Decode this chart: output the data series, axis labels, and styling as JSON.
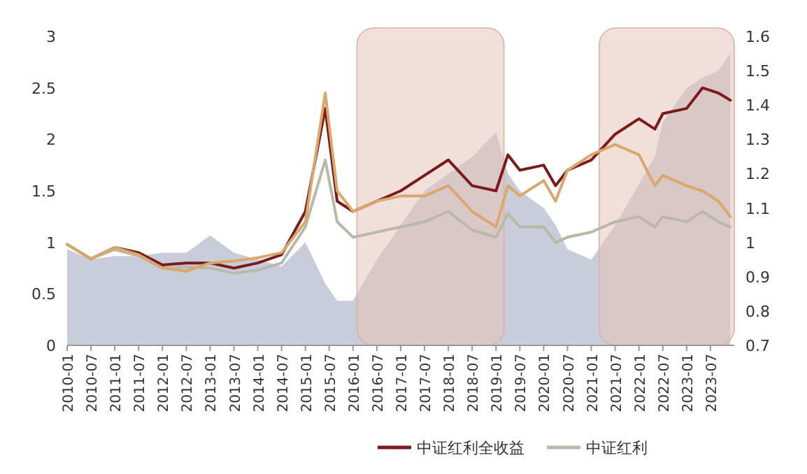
{
  "chart_data": {
    "type": "line",
    "x": [
      "2010-01",
      "2010-07",
      "2011-01",
      "2011-07",
      "2012-01",
      "2012-07",
      "2013-01",
      "2013-07",
      "2014-01",
      "2014-07",
      "2015-01",
      "2015-06",
      "2015-09",
      "2016-01",
      "2016-07",
      "2017-01",
      "2017-07",
      "2018-01",
      "2018-07",
      "2019-01",
      "2019-04",
      "2019-07",
      "2020-01",
      "2020-04",
      "2020-07",
      "2021-01",
      "2021-07",
      "2022-01",
      "2022-05",
      "2022-07",
      "2023-01",
      "2023-05",
      "2023-09",
      "2023-12"
    ],
    "series": [
      {
        "type": "area",
        "axis": "y2",
        "color": "#c9cdd9",
        "values": [
          0.98,
          0.95,
          0.96,
          0.96,
          0.97,
          0.97,
          1.02,
          0.97,
          0.95,
          0.93,
          1.0,
          0.88,
          0.83,
          0.83,
          0.95,
          1.05,
          1.15,
          1.2,
          1.25,
          1.32,
          1.2,
          1.15,
          1.1,
          1.05,
          0.98,
          0.95,
          1.05,
          1.17,
          1.25,
          1.35,
          1.45,
          1.48,
          1.5,
          1.55
        ]
      },
      {
        "name": "中证红利全收益",
        "color": "#7b1a1a",
        "values": [
          0.98,
          0.84,
          0.95,
          0.9,
          0.78,
          0.8,
          0.8,
          0.75,
          0.8,
          0.88,
          1.3,
          2.3,
          1.4,
          1.3,
          1.4,
          1.5,
          1.65,
          1.8,
          1.55,
          1.5,
          1.85,
          1.7,
          1.75,
          1.55,
          1.7,
          1.8,
          2.05,
          2.2,
          2.1,
          2.25,
          2.3,
          2.5,
          2.45,
          2.38
        ]
      },
      {
        "name": "中证红利",
        "color": "#b9b9a9",
        "values": [
          0.98,
          0.84,
          0.93,
          0.87,
          0.75,
          0.76,
          0.75,
          0.7,
          0.73,
          0.8,
          1.15,
          1.8,
          1.2,
          1.05,
          1.1,
          1.15,
          1.2,
          1.3,
          1.12,
          1.05,
          1.28,
          1.15,
          1.15,
          1.0,
          1.05,
          1.1,
          1.2,
          1.25,
          1.15,
          1.25,
          1.2,
          1.3,
          1.2,
          1.15
        ]
      },
      {
        "color": "#d9a86c",
        "values": [
          0.98,
          0.84,
          0.95,
          0.88,
          0.75,
          0.72,
          0.8,
          0.82,
          0.85,
          0.9,
          1.2,
          2.45,
          1.5,
          1.3,
          1.4,
          1.45,
          1.45,
          1.55,
          1.3,
          1.15,
          1.55,
          1.45,
          1.6,
          1.4,
          1.7,
          1.85,
          1.95,
          1.85,
          1.55,
          1.65,
          1.55,
          1.5,
          1.4,
          1.25
        ]
      }
    ],
    "xlim": [
      "2010-01",
      "2024-01"
    ],
    "xticks": [
      "2010-01",
      "2010-07",
      "2011-01",
      "2011-07",
      "2012-01",
      "2012-07",
      "2013-01",
      "2013-07",
      "2014-01",
      "2014-07",
      "2015-01",
      "2015-07",
      "2016-01",
      "2016-07",
      "2017-01",
      "2017-07",
      "2018-01",
      "2018-07",
      "2019-01",
      "2019-07",
      "2020-01",
      "2020-07",
      "2021-01",
      "2021-07",
      "2022-01",
      "2022-07",
      "2023-01",
      "2023-07"
    ],
    "ylim": [
      0,
      3
    ],
    "yticks": [
      0,
      0.5,
      1,
      1.5,
      2,
      2.5,
      3
    ],
    "y2lim": [
      0.7,
      1.6
    ],
    "y2ticks": [
      0.7,
      0.8,
      0.9,
      1,
      1.1,
      1.2,
      1.3,
      1.4,
      1.5,
      1.6
    ],
    "bands": [
      {
        "axis": "x",
        "from": "2016-02",
        "to": "2019-03",
        "color": "#e8c4ba"
      },
      {
        "axis": "x",
        "from": "2021-03",
        "to": "2024-01",
        "color": "#e8c4ba"
      }
    ],
    "legend": "bottom",
    "grid": false
  }
}
